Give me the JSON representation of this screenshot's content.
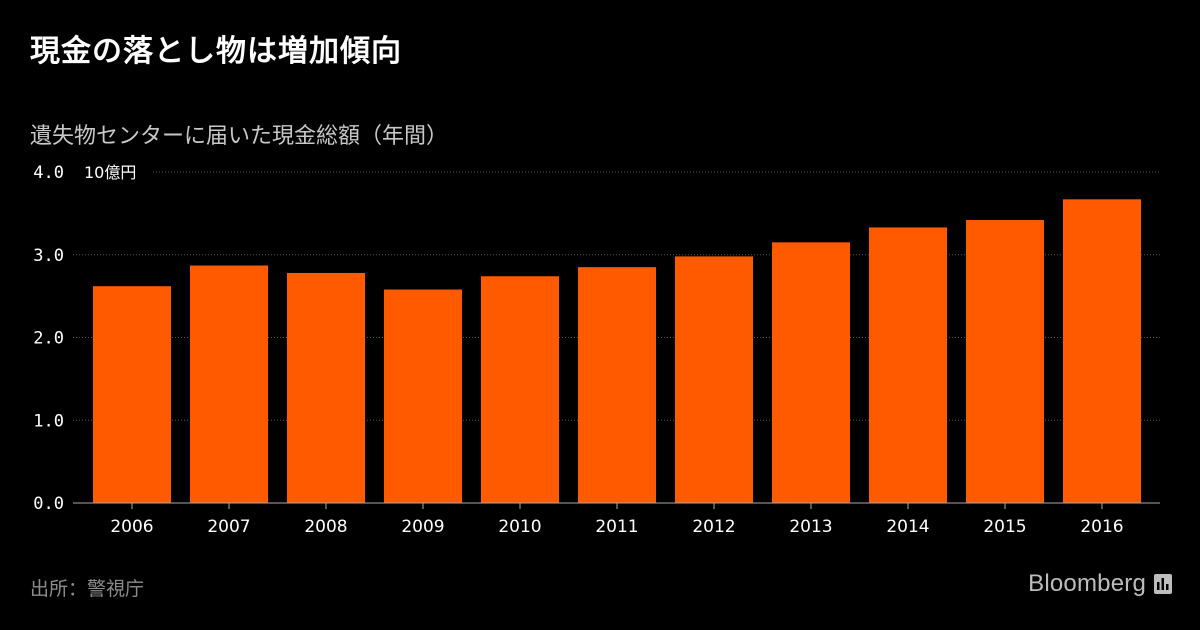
{
  "header": {
    "title": "現金の落とし物は増加傾向",
    "subtitle": "遺失物センターに届いた現金総額（年間）"
  },
  "footer": {
    "source": "出所：警視庁",
    "brand": "Bloomberg"
  },
  "colors": {
    "background": "#000000",
    "bar": "#ff5a00",
    "grid": "#555555",
    "axis": "#aaaaaa",
    "tick_text": "#ffffff"
  },
  "chart_data": {
    "type": "bar",
    "title": "現金の落とし物は増加傾向",
    "subtitle": "遺失物センターに届いた現金総額（年間）",
    "unit_label": "10億円",
    "xlabel": "",
    "ylabel": "10億円",
    "ylim": [
      0,
      4.0
    ],
    "yticks": [
      0.0,
      1.0,
      2.0,
      3.0,
      4.0
    ],
    "ytick_labels": [
      "0.0",
      "1.0",
      "2.0",
      "3.0",
      "4.0"
    ],
    "grid": true,
    "categories": [
      "2006",
      "2007",
      "2008",
      "2009",
      "2010",
      "2011",
      "2012",
      "2013",
      "2014",
      "2015",
      "2016"
    ],
    "series": [
      {
        "name": "現金総額",
        "values": [
          2.62,
          2.87,
          2.78,
          2.58,
          2.74,
          2.85,
          2.98,
          3.15,
          3.33,
          3.42,
          3.67
        ]
      }
    ]
  }
}
